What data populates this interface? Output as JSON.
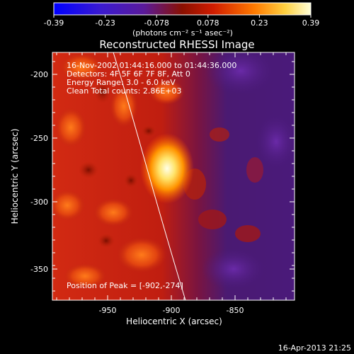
{
  "colorbar": {
    "tick_labels": [
      "-0.39",
      "-0.23",
      "-0.078",
      "0.078",
      "0.23",
      "0.39"
    ],
    "units": "(photons cm⁻² s⁻¹ asec⁻²)",
    "range": [
      -0.39,
      0.39
    ]
  },
  "image": {
    "title": "Reconstructed RHESSI Image",
    "info_lines": [
      "16-Nov-2002 01:44:16.000 to 01:44:36.000",
      "Detectors: 4F 5F 6F 7F 8F, Att 0",
      "Energy Range: 3.0 - 6.0 keV",
      "Clean    Total counts: 2.86E+03"
    ],
    "peak_text": "Position of Peak = [-902,-274]",
    "timestamp": "16-Apr-2013 21:25",
    "peak_position": [
      -902,
      -274
    ]
  },
  "axes": {
    "xlabel": "Heliocentric X (arcsec)",
    "ylabel": "Heliocentric Y (arcsec)",
    "x_ticks": [
      "-950",
      "-900",
      "-850"
    ],
    "y_ticks": [
      "-200",
      "-250",
      "-300",
      "-350"
    ],
    "xlim": [
      -995,
      -805
    ],
    "ylim": [
      -376,
      -186
    ]
  },
  "colors": {
    "background": "#000000",
    "limb_line": "#ffffff"
  }
}
